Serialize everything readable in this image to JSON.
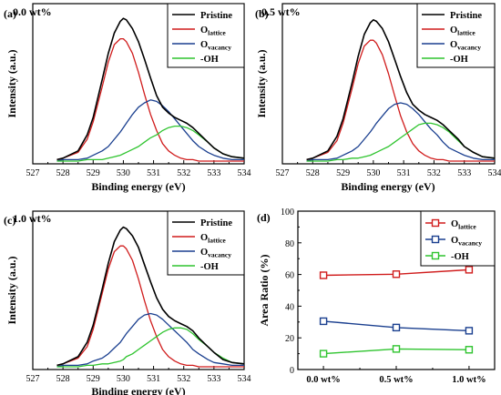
{
  "chart_data": [
    {
      "type": "line",
      "panel": "(a)",
      "annotation": "0.0 wt%",
      "xlabel": "Binding energy (eV)",
      "ylabel": "Intensity (a.u.)",
      "xlim": [
        527,
        534
      ],
      "xticks": [
        "527",
        "528",
        "529",
        "530",
        "531",
        "532",
        "533",
        "534"
      ],
      "ylim": [
        0,
        1.05
      ],
      "grid": false,
      "legend_position": "top-right",
      "x": [
        527.8,
        528.0,
        528.5,
        528.8,
        529.0,
        529.3,
        529.5,
        529.7,
        529.9,
        530.0,
        530.1,
        530.3,
        530.5,
        530.7,
        530.9,
        531.1,
        531.3,
        531.5,
        531.7,
        531.9,
        532.1,
        532.3,
        532.5,
        532.8,
        533.0,
        533.3,
        533.6,
        534.0
      ],
      "series": [
        {
          "name": "Pristine",
          "color": "#000000",
          "values": [
            0.01,
            0.02,
            0.07,
            0.18,
            0.3,
            0.56,
            0.74,
            0.88,
            0.96,
            0.98,
            0.97,
            0.91,
            0.82,
            0.7,
            0.57,
            0.45,
            0.37,
            0.33,
            0.3,
            0.28,
            0.26,
            0.23,
            0.19,
            0.13,
            0.09,
            0.05,
            0.03,
            0.02
          ]
        },
        {
          "name": "O",
          "subscript": "lattice",
          "color": "#d01c1c",
          "values": [
            0.01,
            0.02,
            0.06,
            0.15,
            0.27,
            0.51,
            0.68,
            0.8,
            0.84,
            0.84,
            0.82,
            0.74,
            0.61,
            0.46,
            0.32,
            0.21,
            0.12,
            0.07,
            0.04,
            0.02,
            0.01,
            0.01,
            0.0,
            0.0,
            0.0,
            0.0,
            0.0,
            0.0
          ]
        },
        {
          "name": "O",
          "subscript": "vacancy",
          "color": "#1a3f8f",
          "values": [
            0.0,
            0.01,
            0.01,
            0.02,
            0.04,
            0.07,
            0.1,
            0.15,
            0.2,
            0.23,
            0.26,
            0.32,
            0.37,
            0.4,
            0.42,
            0.41,
            0.38,
            0.34,
            0.29,
            0.24,
            0.19,
            0.14,
            0.1,
            0.06,
            0.04,
            0.02,
            0.01,
            0.01
          ]
        },
        {
          "name": "-OH",
          "color": "#2fc42f",
          "values": [
            0.0,
            0.0,
            0.0,
            0.01,
            0.01,
            0.01,
            0.02,
            0.03,
            0.04,
            0.05,
            0.06,
            0.08,
            0.1,
            0.13,
            0.16,
            0.18,
            0.21,
            0.23,
            0.24,
            0.24,
            0.23,
            0.21,
            0.18,
            0.13,
            0.09,
            0.05,
            0.03,
            0.02
          ]
        }
      ]
    },
    {
      "type": "line",
      "panel": "(b)",
      "annotation": "0.5 wt%",
      "xlabel": "Binding energy (eV)",
      "ylabel": "Intensity (a.u.)",
      "xlim": [
        527,
        534
      ],
      "xticks": [
        "527",
        "528",
        "529",
        "530",
        "531",
        "532",
        "533",
        "534"
      ],
      "ylim": [
        0,
        1.05
      ],
      "grid": false,
      "legend_position": "top-right",
      "x": [
        527.8,
        528.0,
        528.5,
        528.8,
        529.0,
        529.3,
        529.5,
        529.7,
        529.9,
        530.0,
        530.1,
        530.3,
        530.5,
        530.7,
        530.9,
        531.1,
        531.3,
        531.5,
        531.7,
        531.9,
        532.1,
        532.3,
        532.5,
        532.8,
        533.0,
        533.3,
        533.6,
        534.0
      ],
      "series": [
        {
          "name": "Pristine",
          "color": "#000000",
          "values": [
            0.01,
            0.02,
            0.07,
            0.17,
            0.29,
            0.54,
            0.72,
            0.87,
            0.95,
            0.97,
            0.96,
            0.91,
            0.82,
            0.7,
            0.58,
            0.47,
            0.39,
            0.35,
            0.32,
            0.3,
            0.28,
            0.25,
            0.21,
            0.15,
            0.1,
            0.06,
            0.03,
            0.02
          ]
        },
        {
          "name": "O",
          "subscript": "lattice",
          "color": "#d01c1c",
          "values": [
            0.01,
            0.02,
            0.06,
            0.14,
            0.26,
            0.5,
            0.67,
            0.79,
            0.83,
            0.83,
            0.81,
            0.73,
            0.6,
            0.45,
            0.31,
            0.2,
            0.12,
            0.07,
            0.04,
            0.02,
            0.01,
            0.01,
            0.0,
            0.0,
            0.0,
            0.0,
            0.0,
            0.0
          ]
        },
        {
          "name": "O",
          "subscript": "vacancy",
          "color": "#1a3f8f",
          "values": [
            0.0,
            0.01,
            0.01,
            0.02,
            0.04,
            0.07,
            0.1,
            0.15,
            0.2,
            0.23,
            0.26,
            0.31,
            0.36,
            0.39,
            0.4,
            0.39,
            0.36,
            0.32,
            0.27,
            0.22,
            0.18,
            0.13,
            0.09,
            0.06,
            0.04,
            0.02,
            0.01,
            0.01
          ]
        },
        {
          "name": "-OH",
          "color": "#2fc42f",
          "values": [
            0.0,
            0.0,
            0.0,
            0.01,
            0.01,
            0.02,
            0.02,
            0.03,
            0.04,
            0.05,
            0.06,
            0.08,
            0.1,
            0.13,
            0.16,
            0.19,
            0.22,
            0.25,
            0.26,
            0.26,
            0.25,
            0.23,
            0.2,
            0.14,
            0.1,
            0.06,
            0.03,
            0.02
          ]
        }
      ]
    },
    {
      "type": "line",
      "panel": "(c)",
      "annotation": "1.0 wt%",
      "xlabel": "Binding energy (eV)",
      "ylabel": "Intensity (a.u.)",
      "xlim": [
        527,
        534
      ],
      "xticks": [
        "527",
        "528",
        "529",
        "530",
        "531",
        "532",
        "533",
        "534"
      ],
      "ylim": [
        0,
        1.05
      ],
      "grid": false,
      "legend_position": "top-right",
      "x": [
        527.8,
        528.0,
        528.5,
        528.8,
        529.0,
        529.3,
        529.5,
        529.7,
        529.9,
        530.0,
        530.1,
        530.3,
        530.5,
        530.7,
        530.9,
        531.1,
        531.3,
        531.5,
        531.7,
        531.9,
        532.1,
        532.3,
        532.5,
        532.8,
        533.0,
        533.3,
        533.6,
        534.0
      ],
      "series": [
        {
          "name": "Pristine",
          "color": "#000000",
          "values": [
            0.01,
            0.02,
            0.07,
            0.17,
            0.29,
            0.54,
            0.72,
            0.87,
            0.95,
            0.97,
            0.96,
            0.91,
            0.83,
            0.71,
            0.59,
            0.48,
            0.4,
            0.35,
            0.32,
            0.3,
            0.28,
            0.25,
            0.2,
            0.14,
            0.1,
            0.05,
            0.03,
            0.02
          ]
        },
        {
          "name": "O",
          "subscript": "lattice",
          "color": "#d01c1c",
          "values": [
            0.01,
            0.02,
            0.06,
            0.14,
            0.26,
            0.51,
            0.68,
            0.8,
            0.84,
            0.84,
            0.82,
            0.74,
            0.61,
            0.46,
            0.32,
            0.21,
            0.12,
            0.07,
            0.04,
            0.02,
            0.01,
            0.01,
            0.0,
            0.0,
            0.0,
            0.0,
            0.0,
            0.0
          ]
        },
        {
          "name": "O",
          "subscript": "vacancy",
          "color": "#1a3f8f",
          "values": [
            0.0,
            0.01,
            0.01,
            0.02,
            0.04,
            0.06,
            0.09,
            0.13,
            0.17,
            0.2,
            0.23,
            0.28,
            0.33,
            0.36,
            0.37,
            0.36,
            0.33,
            0.29,
            0.25,
            0.21,
            0.17,
            0.12,
            0.09,
            0.05,
            0.03,
            0.02,
            0.01,
            0.01
          ]
        },
        {
          "name": "-OH",
          "color": "#2fc42f",
          "values": [
            0.0,
            0.0,
            0.0,
            0.01,
            0.01,
            0.02,
            0.02,
            0.03,
            0.04,
            0.05,
            0.07,
            0.09,
            0.12,
            0.15,
            0.18,
            0.21,
            0.24,
            0.26,
            0.27,
            0.27,
            0.26,
            0.23,
            0.19,
            0.14,
            0.1,
            0.06,
            0.03,
            0.02
          ]
        }
      ]
    },
    {
      "type": "line",
      "panel": "(d)",
      "xlabel": "",
      "ylabel": "Area Ratio (%)",
      "categories": [
        "0.0 wt%",
        "0.5 wt%",
        "1.0 wt%"
      ],
      "ylim": [
        0,
        100
      ],
      "yticks": [
        "0",
        "20",
        "40",
        "60",
        "80",
        "100"
      ],
      "grid": false,
      "legend_position": "top-right",
      "series": [
        {
          "name": "O",
          "subscript": "lattice",
          "color": "#d01c1c",
          "values": [
            59.5,
            60.2,
            63.0
          ]
        },
        {
          "name": "O",
          "subscript": "vacancy",
          "color": "#1a3f8f",
          "values": [
            30.5,
            26.5,
            24.5
          ]
        },
        {
          "name": "-OH",
          "color": "#2fc42f",
          "values": [
            10.0,
            13.0,
            12.5
          ]
        }
      ]
    }
  ]
}
